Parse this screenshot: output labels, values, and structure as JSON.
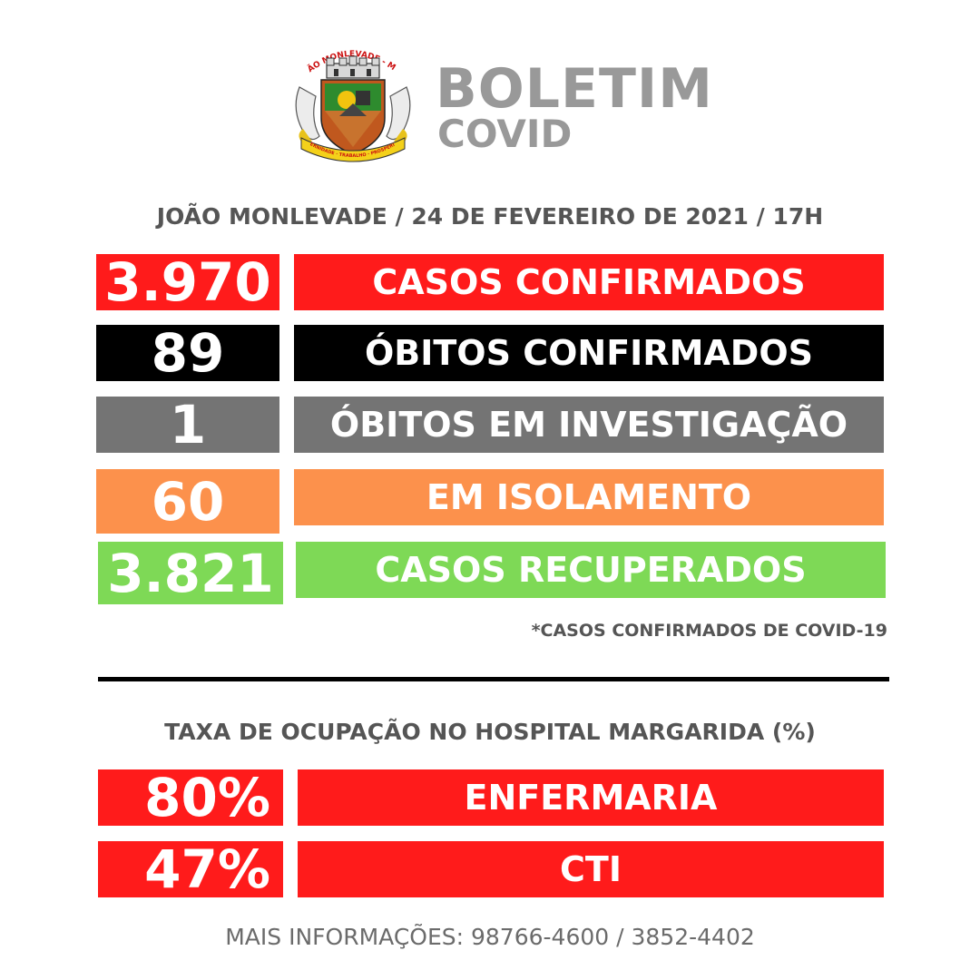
{
  "header": {
    "crest_text": "JOÃO MONLEVADE - M.G.",
    "crest_motto": "FRATERNIDADE · TRABALHO · PROSPERIDADE",
    "title": "BOLETIM",
    "subtitle": "COVID"
  },
  "report": {
    "location_date": "JOÃO MONLEVADE / 24 DE FEVEREIRO DE 2021 / 17H"
  },
  "stats": [
    {
      "value": "3.970",
      "label": "CASOS CONFIRMADOS",
      "color": "#ff1b1b"
    },
    {
      "value": "89",
      "label": "ÓBITOS CONFIRMADOS",
      "color": "#000000"
    },
    {
      "value": "1",
      "label": "ÓBITOS EM INVESTIGAÇÃO",
      "color": "#747474"
    },
    {
      "value": "60",
      "label": "EM ISOLAMENTO",
      "color": "#fc914c"
    },
    {
      "value": "3.821",
      "label": "CASOS RECUPERADOS",
      "color": "#7ed956"
    }
  ],
  "note": "*CASOS CONFIRMADOS DE COVID-19",
  "occupancy": {
    "title": "TAXA DE OCUPAÇÃO NO HOSPITAL MARGARIDA (%)",
    "rows": [
      {
        "value": "80%",
        "label": "ENFERMARIA",
        "color": "#ff1b1b"
      },
      {
        "value": "47%",
        "label": "CTI",
        "color": "#ff1b1b"
      }
    ]
  },
  "footer": "MAIS INFORMAÇÕES: 98766-4600  /  3852-4402"
}
